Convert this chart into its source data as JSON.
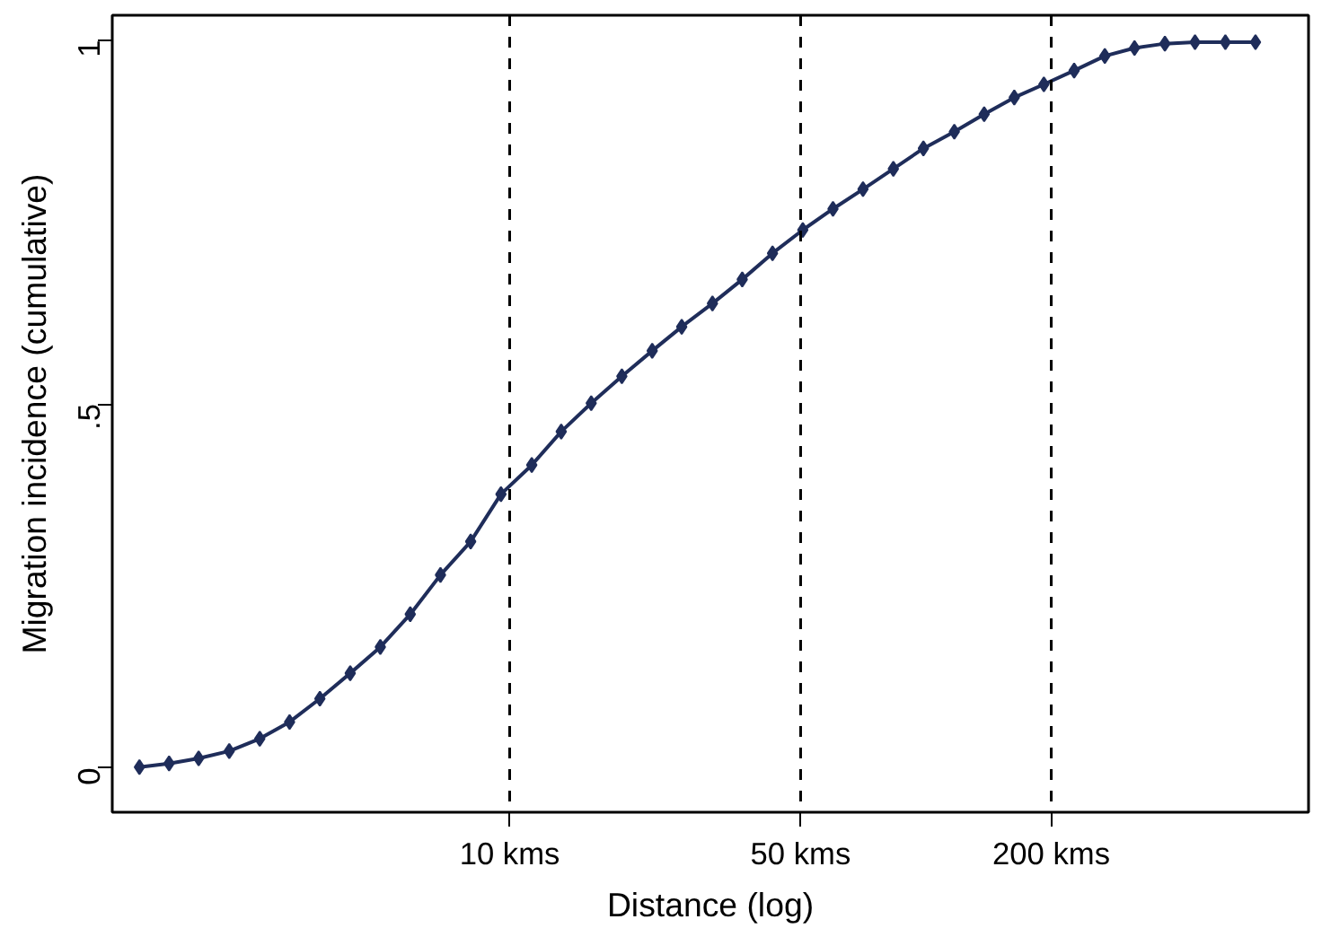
{
  "chart_data": {
    "type": "line",
    "xlabel": "Distance (log)",
    "ylabel": "Migration incidence (cumulative)",
    "x": [
      1.29,
      1.52,
      1.79,
      2.12,
      2.51,
      2.96,
      3.5,
      4.14,
      4.89,
      5.77,
      6.82,
      8.06,
      9.53,
      11.3,
      13.3,
      15.7,
      18.6,
      22.0,
      25.9,
      30.7,
      36.2,
      42.8,
      50.6,
      59.8,
      70.6,
      83.5,
      98.6,
      117,
      138,
      163,
      192,
      227,
      269,
      317,
      375,
      443,
      524,
      619
    ],
    "series": [
      {
        "color": "#1f2d5a",
        "values": [
          0.001,
          0.006,
          0.013,
          0.023,
          0.04,
          0.063,
          0.095,
          0.13,
          0.166,
          0.211,
          0.265,
          0.311,
          0.376,
          0.416,
          0.462,
          0.501,
          0.538,
          0.573,
          0.606,
          0.638,
          0.671,
          0.707,
          0.739,
          0.768,
          0.795,
          0.823,
          0.851,
          0.874,
          0.898,
          0.921,
          0.939,
          0.958,
          0.978,
          0.989,
          0.995,
          0.997,
          0.997,
          0.997
        ]
      }
    ],
    "log": "x",
    "xlim": [
      1.11,
      830
    ],
    "ylim": [
      -0.061,
      1.034
    ],
    "xticks": [
      {
        "value": 10,
        "label": "10 kms"
      },
      {
        "value": 50,
        "label": "50 kms"
      },
      {
        "value": 200,
        "label": "200 kms"
      }
    ],
    "yticks": [
      0,
      {
        "value": 0.5,
        "label": ".5"
      },
      1
    ],
    "ref_lines": [
      {
        "axis": "x",
        "value": 10,
        "color": "#000000",
        "line_style": "dashed"
      },
      {
        "axis": "x",
        "value": 50,
        "color": "#000000",
        "line_style": "dashed"
      },
      {
        "axis": "x",
        "value": 200,
        "color": "#000000",
        "line_style": "dashed"
      }
    ],
    "marker": "diamond",
    "line_style": "solid",
    "grid": false
  }
}
